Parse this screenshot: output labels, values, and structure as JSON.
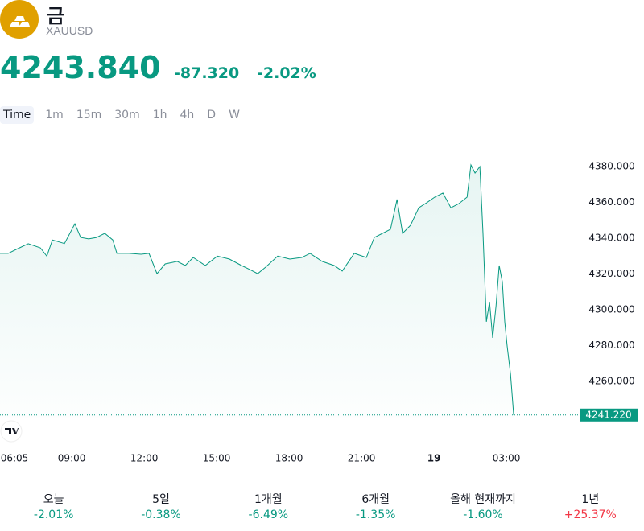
{
  "header": {
    "name": "금",
    "symbol": "XAUUSD",
    "price": "4243.840",
    "change": "-87.320",
    "change_percent": "-2.02%"
  },
  "timeframes": [
    "Time",
    "1m",
    "15m",
    "30m",
    "1h",
    "4h",
    "D",
    "W"
  ],
  "chart_data": {
    "type": "area",
    "color": "#089981",
    "x": [
      6.03,
      6.37,
      6.7,
      7.2,
      7.7,
      7.97,
      8.2,
      8.7,
      9.13,
      9.37,
      9.7,
      10.03,
      10.37,
      10.7,
      10.87,
      11.37,
      11.87,
      12.2,
      12.53,
      12.87,
      13.37,
      13.7,
      14.03,
      14.53,
      15.03,
      15.53,
      16.03,
      16.37,
      16.7,
      17.03,
      17.53,
      18.03,
      18.53,
      18.87,
      19.37,
      19.87,
      20.2,
      20.7,
      21.2,
      21.53,
      21.87,
      22.2,
      22.47,
      22.7,
      23.03,
      23.37,
      23.7,
      24.03,
      24.37,
      24.7,
      25.03,
      25.37,
      25.53,
      25.7,
      25.9,
      26.03,
      26.17,
      26.3,
      26.43,
      26.57,
      26.7,
      26.83,
      26.93,
      27.03,
      27.17,
      27.3
    ],
    "values": [
      4331.5,
      4331.5,
      4333.7,
      4336.9,
      4334.6,
      4330,
      4339,
      4337,
      4348,
      4340.4,
      4339.6,
      4340.4,
      4342.7,
      4339,
      4331.5,
      4331.5,
      4331,
      4331.5,
      4320.2,
      4325.6,
      4327,
      4324.7,
      4329.2,
      4324.7,
      4330,
      4328.3,
      4324.7,
      4322.5,
      4320.2,
      4323.8,
      4330,
      4328.3,
      4329.2,
      4331.5,
      4327,
      4324.7,
      4321.6,
      4331.5,
      4329.2,
      4340.4,
      4342.7,
      4345,
      4361.6,
      4342.7,
      4347.2,
      4357,
      4359.8,
      4362.9,
      4365.2,
      4357,
      4359.3,
      4362.9,
      4380.9,
      4376.4,
      4380,
      4342.7,
      4293.3,
      4304.5,
      4284.3,
      4302.2,
      4324.7,
      4315.7,
      4293.3,
      4279.8,
      4264,
      4241.2
    ],
    "last_price": {
      "value": 4241.22,
      "label": "4241.220"
    },
    "xlim": [
      6.03,
      30.03
    ],
    "ylim": [
      4240,
      4390
    ],
    "xticks": [
      {
        "value": 6.0833,
        "label": "06:05"
      },
      {
        "value": 9,
        "label": "09:00"
      },
      {
        "value": 12,
        "label": "12:00"
      },
      {
        "value": 15,
        "label": "15:00"
      },
      {
        "value": 18,
        "label": "18:00"
      },
      {
        "value": 21,
        "label": "21:00"
      },
      {
        "value": 24,
        "label": "19"
      },
      {
        "value": 27,
        "label": "03:00"
      }
    ],
    "yticks": [
      {
        "value": 4260,
        "label": "4260.000"
      },
      {
        "value": 4280,
        "label": "4280.000"
      },
      {
        "value": 4300,
        "label": "4300.000"
      },
      {
        "value": 4320,
        "label": "4320.000"
      },
      {
        "value": 4340,
        "label": "4340.000"
      },
      {
        "value": 4360,
        "label": "4360.000"
      },
      {
        "value": 4380,
        "label": "4380.000"
      }
    ]
  },
  "performance": [
    {
      "label": "오늘",
      "value": "-2.01%",
      "color": "#089981"
    },
    {
      "label": "5일",
      "value": "-0.38%",
      "color": "#089981"
    },
    {
      "label": "1개월",
      "value": "-6.49%",
      "color": "#089981"
    },
    {
      "label": "6개월",
      "value": "-1.35%",
      "color": "#089981"
    },
    {
      "label": "올해 현재까지",
      "value": "-1.60%",
      "color": "#089981"
    },
    {
      "label": "1년",
      "value": "+25.37%",
      "color": "#f23645"
    }
  ]
}
